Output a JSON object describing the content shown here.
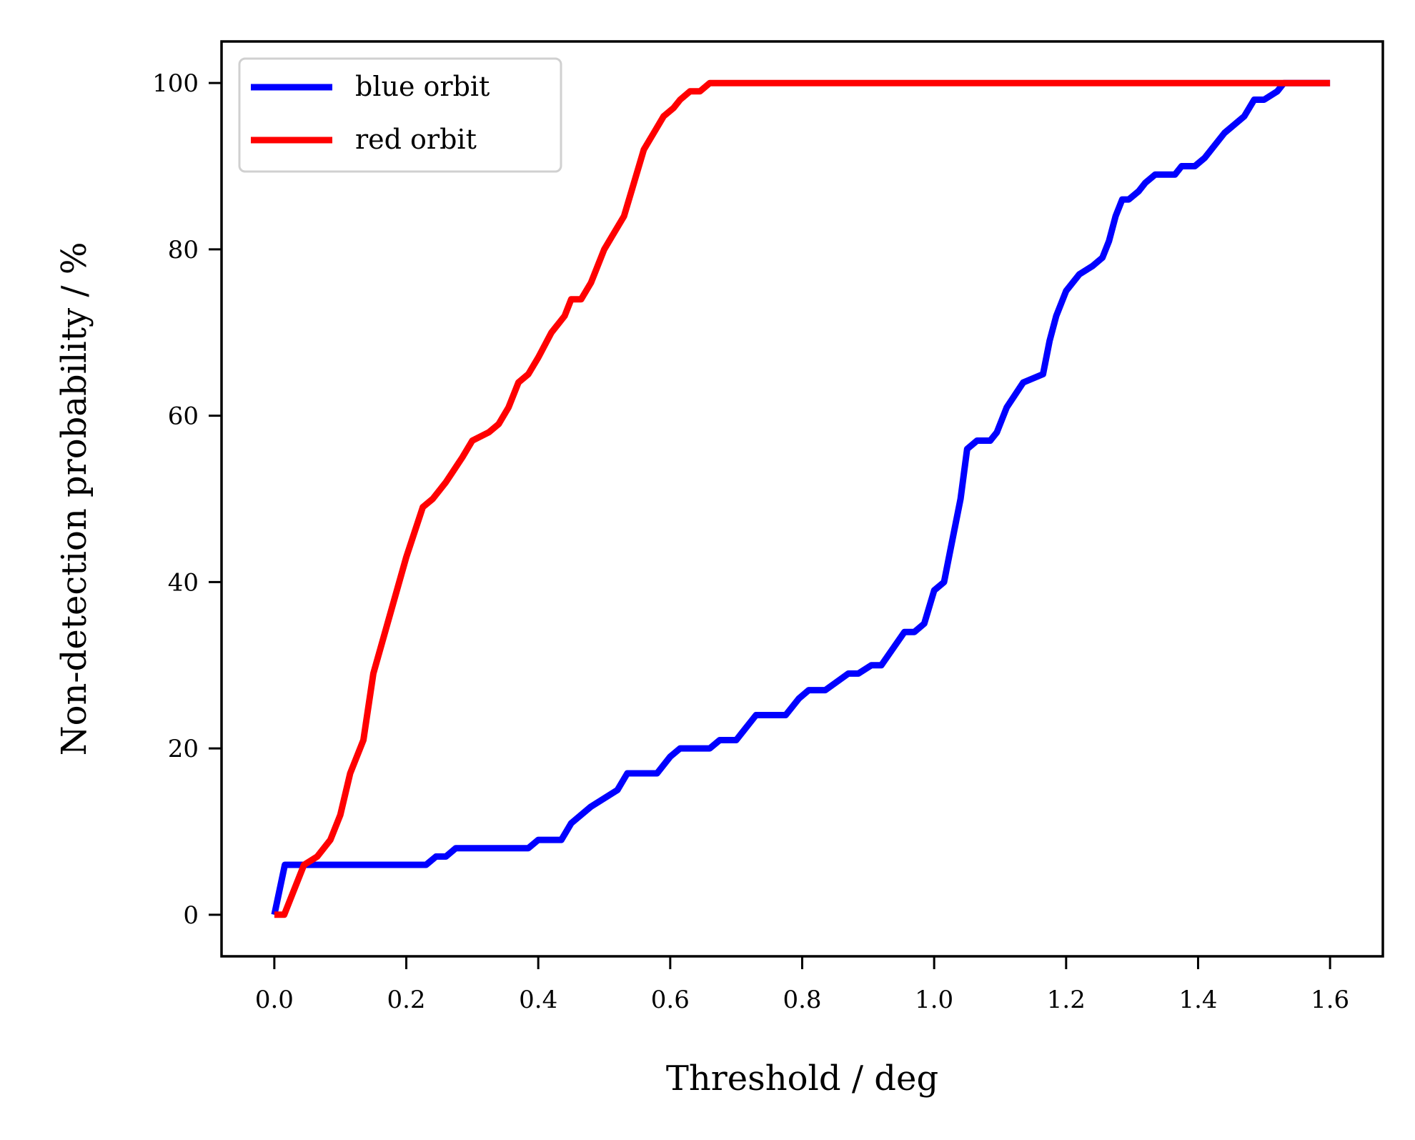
{
  "chart_data": {
    "type": "line",
    "title": "",
    "xlabel": "Threshold / deg",
    "ylabel": "Non-detection probability / %",
    "xlim": [
      -0.08,
      1.68
    ],
    "ylim": [
      -5,
      105
    ],
    "xticks": [
      0.0,
      0.2,
      0.4,
      0.6,
      0.8,
      1.0,
      1.2,
      1.4,
      1.6
    ],
    "xtick_labels": [
      "0.0",
      "0.2",
      "0.4",
      "0.6",
      "0.8",
      "1.0",
      "1.2",
      "1.4",
      "1.6"
    ],
    "yticks": [
      0,
      20,
      40,
      60,
      80,
      100
    ],
    "ytick_labels": [
      "0",
      "20",
      "40",
      "60",
      "80",
      "100"
    ],
    "grid": false,
    "legend_position": "top-left",
    "series": [
      {
        "name": "blue orbit",
        "color": "#0000ff",
        "x": [
          0.0,
          0.016,
          0.03,
          0.06,
          0.1,
          0.15,
          0.2,
          0.23,
          0.245,
          0.26,
          0.275,
          0.3,
          0.35,
          0.385,
          0.4,
          0.435,
          0.45,
          0.48,
          0.52,
          0.535,
          0.58,
          0.6,
          0.615,
          0.66,
          0.675,
          0.7,
          0.71,
          0.73,
          0.775,
          0.795,
          0.81,
          0.835,
          0.87,
          0.885,
          0.905,
          0.92,
          0.955,
          0.97,
          0.985,
          1.0,
          1.015,
          1.025,
          1.04,
          1.05,
          1.065,
          1.075,
          1.085,
          1.095,
          1.11,
          1.135,
          1.165,
          1.175,
          1.185,
          1.2,
          1.22,
          1.24,
          1.255,
          1.265,
          1.275,
          1.285,
          1.295,
          1.31,
          1.32,
          1.335,
          1.345,
          1.365,
          1.375,
          1.395,
          1.41,
          1.44,
          1.47,
          1.485,
          1.5,
          1.52,
          1.53,
          1.55,
          1.6
        ],
        "y": [
          0,
          6,
          6,
          6,
          6,
          6,
          6,
          6,
          7,
          7,
          8,
          8,
          8,
          8,
          9,
          9,
          11,
          13,
          15,
          17,
          17,
          19,
          20,
          20,
          21,
          21,
          22,
          24,
          24,
          26,
          27,
          27,
          29,
          29,
          30,
          30,
          34,
          34,
          35,
          39,
          40,
          44,
          50,
          56,
          57,
          57,
          57,
          58,
          61,
          64,
          65,
          69,
          72,
          75,
          77,
          78,
          79,
          81,
          84,
          86,
          86,
          87,
          88,
          89,
          89,
          89,
          90,
          90,
          91,
          94,
          96,
          98,
          98,
          99,
          100,
          100,
          100
        ]
      },
      {
        "name": "red orbit",
        "color": "#ff0000",
        "x": [
          0.0,
          0.015,
          0.045,
          0.065,
          0.085,
          0.1,
          0.115,
          0.135,
          0.15,
          0.2,
          0.225,
          0.24,
          0.26,
          0.285,
          0.3,
          0.325,
          0.34,
          0.355,
          0.37,
          0.385,
          0.4,
          0.42,
          0.44,
          0.45,
          0.465,
          0.48,
          0.5,
          0.515,
          0.53,
          0.545,
          0.56,
          0.575,
          0.59,
          0.605,
          0.615,
          0.63,
          0.645,
          0.66,
          0.675,
          0.7,
          0.75,
          0.8,
          1.0,
          1.2,
          1.4,
          1.6
        ],
        "y": [
          0,
          0,
          6,
          7,
          9,
          12,
          17,
          21,
          29,
          43,
          49,
          50,
          52,
          55,
          57,
          58,
          59,
          61,
          64,
          65,
          67,
          70,
          72,
          74,
          74,
          76,
          80,
          82,
          84,
          88,
          92,
          94,
          96,
          97,
          98,
          99,
          99,
          100,
          100,
          100,
          100,
          100,
          100,
          100,
          100,
          100
        ]
      }
    ]
  }
}
